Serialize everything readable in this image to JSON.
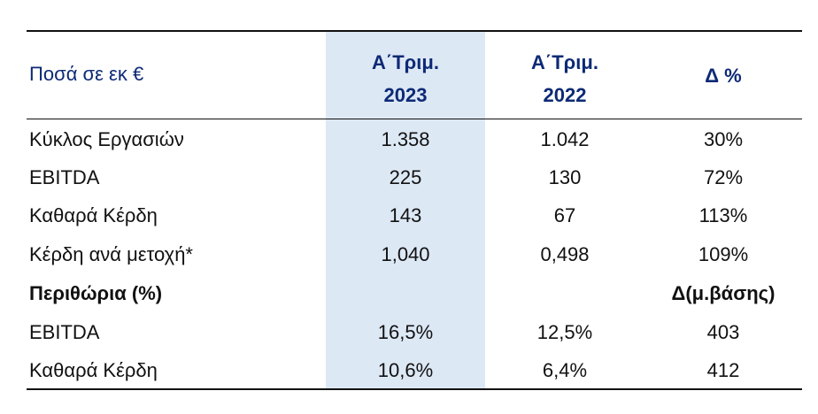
{
  "header": {
    "label": "Ποσά σε εκ €",
    "col1_line1": "Α΄Τριμ.",
    "col1_line2": "2023",
    "col2_line1": "Α΄Τριμ.",
    "col2_line2": "2022",
    "col3": "Δ %"
  },
  "rows": [
    {
      "label": "Κύκλος Εργασιών",
      "v1": "1.358",
      "v2": "1.042",
      "v3": "30%"
    },
    {
      "label": "EBITDA",
      "v1": "225",
      "v2": "130",
      "v3": "72%"
    },
    {
      "label": "Καθαρά Κέρδη",
      "v1": "143",
      "v2": "67",
      "v3": "113%"
    },
    {
      "label": "Κέρδη ανά μετοχή*",
      "v1": "1,040",
      "v2": "0,498",
      "v3": "109%"
    }
  ],
  "margins_section": {
    "label": "Περιθώρια (%)",
    "delta_label": "Δ(μ.βάσης)"
  },
  "margin_rows": [
    {
      "label": "EBITDA",
      "v1": "16,5%",
      "v2": "12,5%",
      "v3": "403"
    },
    {
      "label": "Καθαρά Κέρδη",
      "v1": "10,6%",
      "v2": "6,4%",
      "v3": "412"
    }
  ],
  "colors": {
    "header_text": "#0d2a75",
    "highlight_column": "#dde8f5"
  }
}
